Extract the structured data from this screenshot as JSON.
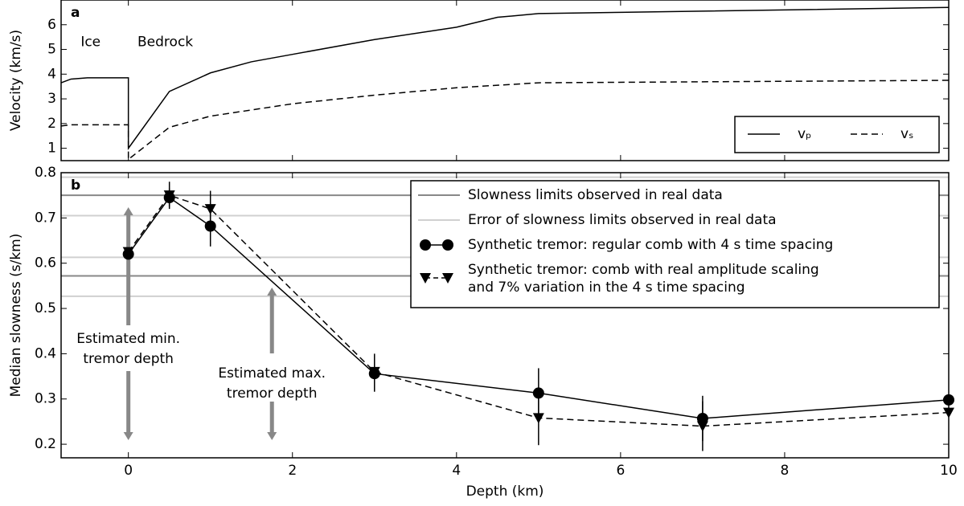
{
  "chart_data": [
    {
      "type": "line",
      "label": "a",
      "ylabel": "Velocity (km/s)",
      "xlim": [
        -0.82,
        10
      ],
      "xticks": [
        0,
        2,
        4,
        6,
        8,
        10
      ],
      "ylim": [
        0.5,
        7
      ],
      "yticks": [
        1,
        2,
        3,
        4,
        5,
        6
      ],
      "annotations": [
        {
          "text": "Ice",
          "x": -0.46,
          "y": 5.3
        },
        {
          "text": "Bedrock",
          "x": 0.45,
          "y": 5.3
        }
      ],
      "legend": "lower right",
      "series": [
        {
          "name": "vₚ",
          "color": "#000000",
          "dash": false,
          "x": [
            -0.82,
            -0.7,
            -0.5,
            0,
            0,
            0.5,
            1,
            1.5,
            2,
            3,
            4,
            4.5,
            5,
            6,
            10
          ],
          "values": [
            3.65,
            3.8,
            3.85,
            3.85,
            1.0,
            3.3,
            4.05,
            4.5,
            4.8,
            5.4,
            5.9,
            6.3,
            6.45,
            6.5,
            6.7
          ]
        },
        {
          "name": "vₛ",
          "color": "#000000",
          "dash": true,
          "x": [
            -0.82,
            -0.7,
            0,
            0,
            0.5,
            1,
            2,
            3,
            4,
            4.5,
            5,
            10
          ],
          "values": [
            1.9,
            1.95,
            1.95,
            0.55,
            1.85,
            2.3,
            2.8,
            3.15,
            3.45,
            3.55,
            3.65,
            3.75
          ]
        }
      ]
    },
    {
      "type": "line",
      "label": "b",
      "xlabel": "Depth (km)",
      "ylabel": "Median slowness (s/km)",
      "xlim": [
        -0.82,
        10
      ],
      "xticks": [
        0,
        2,
        4,
        6,
        8,
        10
      ],
      "ylim": [
        0.17,
        0.8
      ],
      "yticks": [
        0.2,
        0.3,
        0.4,
        0.5,
        0.6,
        0.7,
        0.8
      ],
      "reference_lines": [
        {
          "name": [
            "Slowness limits observed in real data"
          ],
          "color": "#888888",
          "values": [
            0.75,
            0.572
          ]
        },
        {
          "name": [
            "Error of slowness limits observed in real data"
          ],
          "color": "#d0d0d0",
          "values": [
            0.79,
            0.705,
            0.613,
            0.527
          ]
        }
      ],
      "annotations": [
        {
          "lines": [
            "Estimated min.",
            "tremor depth"
          ],
          "x": 0
        },
        {
          "lines": [
            "Estimated max.",
            "tremor depth"
          ],
          "x": 1.75
        }
      ],
      "legend": "upper right",
      "series": [
        {
          "name": [
            "Synthetic tremor: regular comb with 4 s time spacing"
          ],
          "color": "#000000",
          "dash": false,
          "marker": "circle",
          "x": [
            0,
            0.5,
            1,
            3,
            5,
            7,
            10
          ],
          "values": [
            0.62,
            0.745,
            0.682,
            0.356,
            0.313,
            0.257,
            0.298
          ],
          "errors": [
            0,
            0.02,
            0.045,
            0.04,
            0.055,
            0.05,
            0
          ]
        },
        {
          "name": [
            "Synthetic tremor: comb with real amplitude scaling",
            " and 7% variation in the 4 s time spacing"
          ],
          "color": "#000000",
          "dash": true,
          "marker": "triangle",
          "x": [
            0,
            0.5,
            1,
            3,
            5,
            7,
            10
          ],
          "values": [
            0.625,
            0.75,
            0.72,
            0.36,
            0.258,
            0.24,
            0.27
          ],
          "errors": [
            0,
            0.03,
            0.04,
            0.04,
            0.06,
            0.055,
            0
          ]
        }
      ]
    }
  ]
}
